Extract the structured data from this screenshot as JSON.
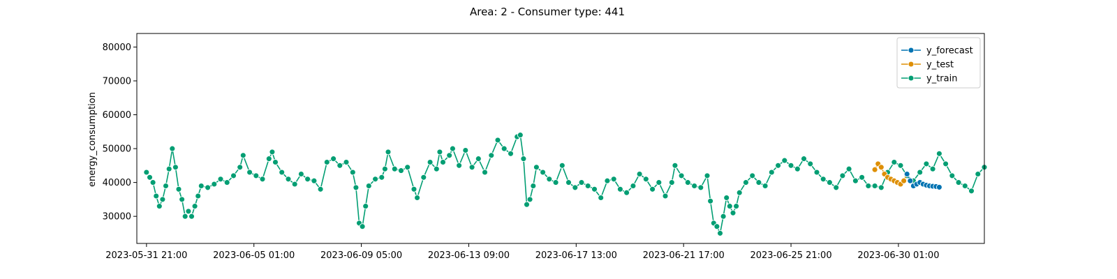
{
  "chart_data": {
    "type": "line",
    "title": "Area: 2 - Consumer type: 441",
    "xlabel": "",
    "ylabel": "energy_consumption",
    "x_axis": {
      "type": "datetime",
      "min": "2023-05-31T12:00",
      "max": "2023-07-03T09:00",
      "ticks": [
        "2023-05-31 21:00",
        "2023-06-05 01:00",
        "2023-06-09 05:00",
        "2023-06-13 09:00",
        "2023-06-17 13:00",
        "2023-06-21 17:00",
        "2023-06-25 21:00",
        "2023-06-30 01:00"
      ]
    },
    "y_axis": {
      "min": 22000,
      "max": 84000,
      "ticks": [
        30000,
        40000,
        50000,
        60000,
        70000,
        80000
      ]
    },
    "legend": {
      "position": "top-right"
    },
    "grid": false,
    "series": [
      {
        "name": "y_forecast",
        "color": "#0173b2",
        "points": [
          [
            "2023-06-30T09:00",
            42500
          ],
          [
            "2023-06-30T12:00",
            40500
          ],
          [
            "2023-06-30T15:00",
            39000
          ],
          [
            "2023-06-30T18:00",
            39500
          ],
          [
            "2023-06-30T21:00",
            40000
          ],
          [
            "2023-07-01T00:00",
            39500
          ],
          [
            "2023-07-01T03:00",
            39200
          ],
          [
            "2023-07-01T06:00",
            39000
          ],
          [
            "2023-07-01T09:00",
            38900
          ],
          [
            "2023-07-01T12:00",
            38800
          ],
          [
            "2023-07-01T15:00",
            38600
          ]
        ]
      },
      {
        "name": "y_test",
        "color": "#de8f05",
        "points": [
          [
            "2023-06-29T03:00",
            43800
          ],
          [
            "2023-06-29T06:00",
            45500
          ],
          [
            "2023-06-29T09:00",
            44500
          ],
          [
            "2023-06-29T12:00",
            42500
          ],
          [
            "2023-06-29T15:00",
            41500
          ],
          [
            "2023-06-29T18:00",
            41000
          ],
          [
            "2023-06-29T21:00",
            40500
          ],
          [
            "2023-06-30T00:00",
            40000
          ],
          [
            "2023-06-30T03:00",
            39500
          ],
          [
            "2023-06-30T06:00",
            40500
          ],
          [
            "2023-06-30T09:00",
            42500
          ]
        ]
      },
      {
        "name": "y_train",
        "color": "#029e73",
        "points": [
          [
            "2023-05-31T21:00",
            43000
          ],
          [
            "2023-06-01T00:00",
            41500
          ],
          [
            "2023-06-01T03:00",
            40000
          ],
          [
            "2023-06-01T06:00",
            36000
          ],
          [
            "2023-06-01T09:00",
            33000
          ],
          [
            "2023-06-01T12:00",
            35000
          ],
          [
            "2023-06-01T15:00",
            39000
          ],
          [
            "2023-06-01T18:00",
            44000
          ],
          [
            "2023-06-01T21:00",
            50000
          ],
          [
            "2023-06-02T00:00",
            44500
          ],
          [
            "2023-06-02T03:00",
            38000
          ],
          [
            "2023-06-02T06:00",
            35000
          ],
          [
            "2023-06-02T09:00",
            30000
          ],
          [
            "2023-06-02T12:00",
            31500
          ],
          [
            "2023-06-02T15:00",
            30000
          ],
          [
            "2023-06-02T18:00",
            33000
          ],
          [
            "2023-06-02T21:00",
            36000
          ],
          [
            "2023-06-03T00:00",
            39000
          ],
          [
            "2023-06-03T06:00",
            38500
          ],
          [
            "2023-06-03T12:00",
            39500
          ],
          [
            "2023-06-03T18:00",
            41000
          ],
          [
            "2023-06-04T00:00",
            40000
          ],
          [
            "2023-06-04T06:00",
            42000
          ],
          [
            "2023-06-04T12:00",
            44500
          ],
          [
            "2023-06-04T15:00",
            48000
          ],
          [
            "2023-06-04T21:00",
            43000
          ],
          [
            "2023-06-05T03:00",
            42000
          ],
          [
            "2023-06-05T09:00",
            41000
          ],
          [
            "2023-06-05T15:00",
            47000
          ],
          [
            "2023-06-05T18:00",
            49000
          ],
          [
            "2023-06-05T21:00",
            46000
          ],
          [
            "2023-06-06T03:00",
            43000
          ],
          [
            "2023-06-06T09:00",
            41000
          ],
          [
            "2023-06-06T15:00",
            39500
          ],
          [
            "2023-06-06T21:00",
            42500
          ],
          [
            "2023-06-07T03:00",
            41000
          ],
          [
            "2023-06-07T09:00",
            40500
          ],
          [
            "2023-06-07T15:00",
            38000
          ],
          [
            "2023-06-07T21:00",
            46000
          ],
          [
            "2023-06-08T03:00",
            47000
          ],
          [
            "2023-06-08T09:00",
            45000
          ],
          [
            "2023-06-08T15:00",
            46000
          ],
          [
            "2023-06-08T21:00",
            43000
          ],
          [
            "2023-06-09T00:00",
            38500
          ],
          [
            "2023-06-09T03:00",
            28000
          ],
          [
            "2023-06-09T06:00",
            27000
          ],
          [
            "2023-06-09T09:00",
            33000
          ],
          [
            "2023-06-09T12:00",
            39000
          ],
          [
            "2023-06-09T18:00",
            41000
          ],
          [
            "2023-06-10T00:00",
            41500
          ],
          [
            "2023-06-10T03:00",
            44000
          ],
          [
            "2023-06-10T06:00",
            49000
          ],
          [
            "2023-06-10T12:00",
            44000
          ],
          [
            "2023-06-10T18:00",
            43500
          ],
          [
            "2023-06-11T00:00",
            44500
          ],
          [
            "2023-06-11T06:00",
            38000
          ],
          [
            "2023-06-11T09:00",
            35500
          ],
          [
            "2023-06-11T15:00",
            41500
          ],
          [
            "2023-06-11T21:00",
            46000
          ],
          [
            "2023-06-12T03:00",
            44000
          ],
          [
            "2023-06-12T06:00",
            49000
          ],
          [
            "2023-06-12T09:00",
            46000
          ],
          [
            "2023-06-12T15:00",
            48000
          ],
          [
            "2023-06-12T18:00",
            50000
          ],
          [
            "2023-06-13T00:00",
            45000
          ],
          [
            "2023-06-13T06:00",
            49500
          ],
          [
            "2023-06-13T12:00",
            44500
          ],
          [
            "2023-06-13T18:00",
            47000
          ],
          [
            "2023-06-14T00:00",
            43000
          ],
          [
            "2023-06-14T06:00",
            48000
          ],
          [
            "2023-06-14T12:00",
            52500
          ],
          [
            "2023-06-14T18:00",
            50000
          ],
          [
            "2023-06-15T00:00",
            48500
          ],
          [
            "2023-06-15T06:00",
            53500
          ],
          [
            "2023-06-15T09:00",
            54000
          ],
          [
            "2023-06-15T12:00",
            47000
          ],
          [
            "2023-06-15T15:00",
            33500
          ],
          [
            "2023-06-15T18:00",
            35000
          ],
          [
            "2023-06-15T21:00",
            39000
          ],
          [
            "2023-06-16T00:00",
            44500
          ],
          [
            "2023-06-16T06:00",
            43000
          ],
          [
            "2023-06-16T12:00",
            41000
          ],
          [
            "2023-06-16T18:00",
            40000
          ],
          [
            "2023-06-17T00:00",
            45000
          ],
          [
            "2023-06-17T06:00",
            40000
          ],
          [
            "2023-06-17T12:00",
            38500
          ],
          [
            "2023-06-17T18:00",
            40000
          ],
          [
            "2023-06-18T00:00",
            39000
          ],
          [
            "2023-06-18T06:00",
            38000
          ],
          [
            "2023-06-18T12:00",
            35500
          ],
          [
            "2023-06-18T18:00",
            40500
          ],
          [
            "2023-06-19T00:00",
            41000
          ],
          [
            "2023-06-19T06:00",
            38000
          ],
          [
            "2023-06-19T12:00",
            37000
          ],
          [
            "2023-06-19T18:00",
            39000
          ],
          [
            "2023-06-20T00:00",
            42500
          ],
          [
            "2023-06-20T06:00",
            41000
          ],
          [
            "2023-06-20T12:00",
            38000
          ],
          [
            "2023-06-20T18:00",
            40000
          ],
          [
            "2023-06-21T00:00",
            36000
          ],
          [
            "2023-06-21T06:00",
            40000
          ],
          [
            "2023-06-21T09:00",
            45000
          ],
          [
            "2023-06-21T15:00",
            42000
          ],
          [
            "2023-06-21T21:00",
            40000
          ],
          [
            "2023-06-22T03:00",
            39000
          ],
          [
            "2023-06-22T09:00",
            38500
          ],
          [
            "2023-06-22T15:00",
            42000
          ],
          [
            "2023-06-22T18:00",
            34500
          ],
          [
            "2023-06-22T21:00",
            28000
          ],
          [
            "2023-06-23T00:00",
            27000
          ],
          [
            "2023-06-23T03:00",
            25000
          ],
          [
            "2023-06-23T06:00",
            30000
          ],
          [
            "2023-06-23T09:00",
            35500
          ],
          [
            "2023-06-23T12:00",
            33000
          ],
          [
            "2023-06-23T15:00",
            31000
          ],
          [
            "2023-06-23T18:00",
            33000
          ],
          [
            "2023-06-23T21:00",
            37000
          ],
          [
            "2023-06-24T03:00",
            40000
          ],
          [
            "2023-06-24T09:00",
            42000
          ],
          [
            "2023-06-24T15:00",
            40000
          ],
          [
            "2023-06-24T21:00",
            39000
          ],
          [
            "2023-06-25T03:00",
            43000
          ],
          [
            "2023-06-25T09:00",
            45000
          ],
          [
            "2023-06-25T15:00",
            46500
          ],
          [
            "2023-06-25T21:00",
            45000
          ],
          [
            "2023-06-26T03:00",
            44000
          ],
          [
            "2023-06-26T09:00",
            47000
          ],
          [
            "2023-06-26T15:00",
            45500
          ],
          [
            "2023-06-26T21:00",
            43000
          ],
          [
            "2023-06-27T03:00",
            41000
          ],
          [
            "2023-06-27T09:00",
            40000
          ],
          [
            "2023-06-27T15:00",
            38500
          ],
          [
            "2023-06-27T21:00",
            42000
          ],
          [
            "2023-06-28T03:00",
            44000
          ],
          [
            "2023-06-28T09:00",
            40500
          ],
          [
            "2023-06-28T15:00",
            41500
          ],
          [
            "2023-06-28T21:00",
            39000
          ],
          [
            "2023-06-29T03:00",
            39000
          ],
          [
            "2023-06-29T09:00",
            38500
          ],
          [
            "2023-06-29T15:00",
            43000
          ],
          [
            "2023-06-29T21:00",
            46000
          ],
          [
            "2023-06-30T03:00",
            45000
          ],
          [
            "2023-06-30T09:00",
            42000
          ],
          [
            "2023-06-30T15:00",
            40500
          ],
          [
            "2023-06-30T21:00",
            43000
          ],
          [
            "2023-07-01T03:00",
            45500
          ],
          [
            "2023-07-01T09:00",
            44000
          ],
          [
            "2023-07-01T15:00",
            48500
          ],
          [
            "2023-07-01T21:00",
            45500
          ],
          [
            "2023-07-02T03:00",
            42000
          ],
          [
            "2023-07-02T09:00",
            40000
          ],
          [
            "2023-07-02T15:00",
            39000
          ],
          [
            "2023-07-02T21:00",
            37500
          ],
          [
            "2023-07-03T03:00",
            42500
          ],
          [
            "2023-07-03T09:00",
            44500
          ]
        ]
      }
    ]
  }
}
